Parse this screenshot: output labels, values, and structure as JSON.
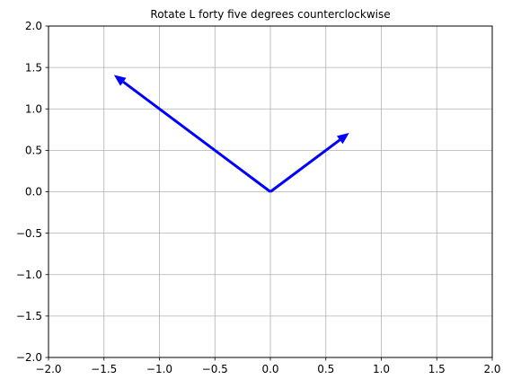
{
  "chart_data": {
    "type": "quiver",
    "title": "Rotate L forty five degrees counterclockwise",
    "xlabel": "",
    "ylabel": "",
    "xlim": [
      -2.0,
      2.0
    ],
    "ylim": [
      -2.0,
      2.0
    ],
    "x_ticks": [
      -2.0,
      -1.5,
      -1.0,
      -0.5,
      0.0,
      0.5,
      1.0,
      1.5,
      2.0
    ],
    "y_ticks": [
      -2.0,
      -1.5,
      -1.0,
      -0.5,
      0.0,
      0.5,
      1.0,
      1.5,
      2.0
    ],
    "x_tick_labels": [
      "−2.0",
      "−1.5",
      "−1.0",
      "−0.5",
      "0.0",
      "0.5",
      "1.0",
      "1.5",
      "2.0"
    ],
    "y_tick_labels": [
      "−2.0",
      "−1.5",
      "−1.0",
      "−0.5",
      "0.0",
      "0.5",
      "1.0",
      "1.5",
      "2.0"
    ],
    "grid": true,
    "vectors": [
      {
        "x0": 0.0,
        "y0": 0.0,
        "dx": 0.71,
        "dy": 0.71,
        "color": "#0000ff"
      },
      {
        "x0": 0.0,
        "y0": 0.0,
        "dx": -1.41,
        "dy": 1.41,
        "color": "#0000ff"
      }
    ]
  },
  "colors": {
    "grid": "#b0b0b0",
    "axes": "#000000",
    "background": "#ffffff",
    "vector": "#0000ff"
  }
}
